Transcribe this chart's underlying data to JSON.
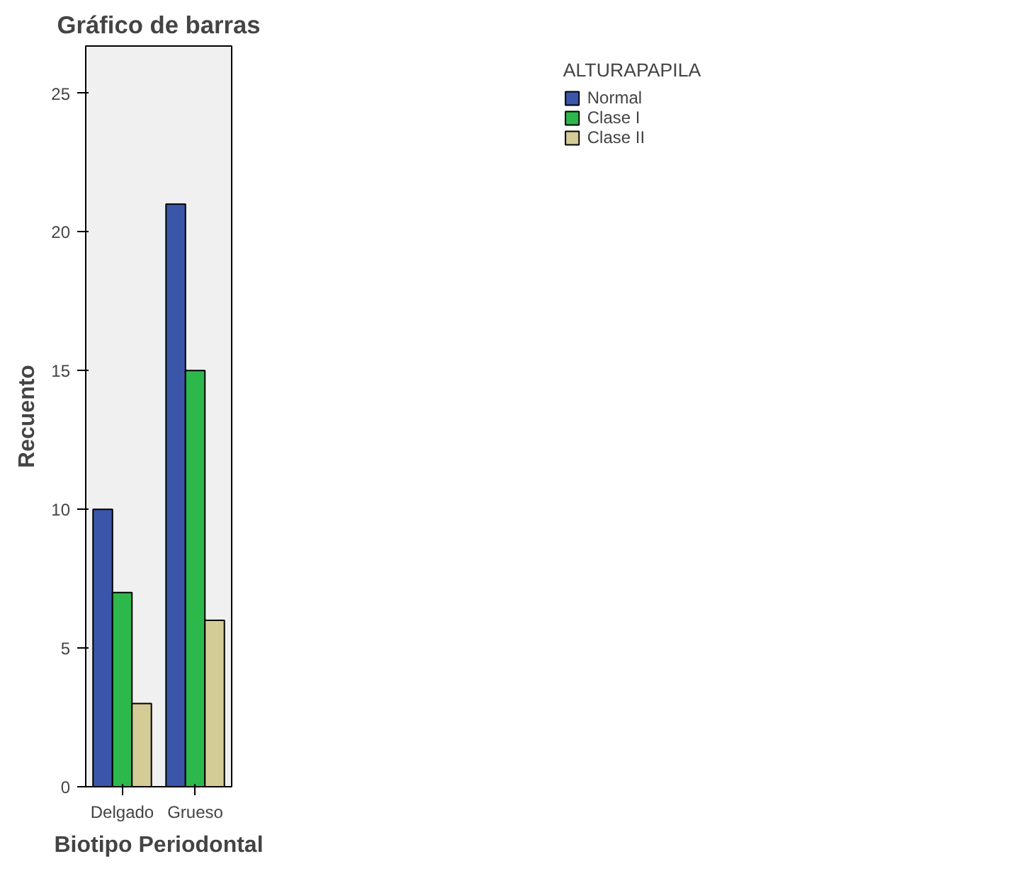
{
  "chart_data": {
    "type": "bar",
    "title": "Gráfico de barras",
    "xlabel": "Biotipo Periodontal",
    "ylabel": "Recuento",
    "legend_title": "ALTURAPAPILA",
    "categories": [
      "Delgado",
      "Grueso"
    ],
    "series": [
      {
        "name": "Normal",
        "color": "#3b56a8",
        "values": [
          10,
          21
        ]
      },
      {
        "name": "Clase I",
        "color": "#2db84b",
        "values": [
          7,
          15
        ]
      },
      {
        "name": "Clase II",
        "color": "#d4cc96",
        "values": [
          3,
          6
        ]
      }
    ],
    "ylim": [
      0,
      26.7
    ],
    "yticks": [
      0,
      5,
      10,
      15,
      20,
      25
    ],
    "grid": false,
    "legend": "top right"
  }
}
